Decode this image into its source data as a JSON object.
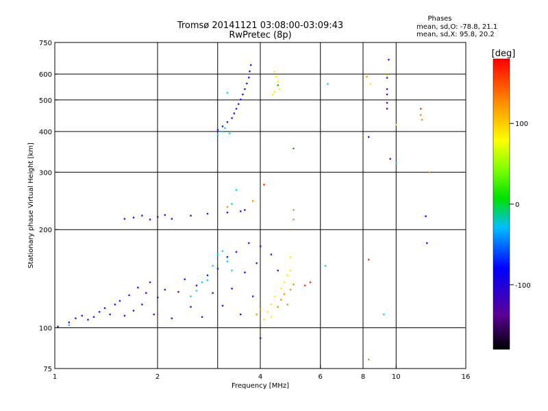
{
  "chart_data": {
    "type": "scatter",
    "title": "Tromsø 20141121 03:08:00-03:09:43",
    "subtitle": "RwPretec (8p)",
    "phase_box": {
      "header": "Phases",
      "line1": "mean, sd,O: -78.8, 21.1",
      "line2": "mean, sd,X:  95.8, 20.2"
    },
    "xlabel": "Frequency [MHz]",
    "ylabel": "Stationary phase Virtual Height [km]",
    "xscale": "log",
    "yscale": "log",
    "xlim": [
      1,
      16
    ],
    "ylim": [
      75,
      750
    ],
    "xticks": [
      1,
      2,
      4,
      6,
      8,
      10,
      16
    ],
    "yticks": [
      75,
      100,
      200,
      300,
      400,
      500,
      600,
      750
    ],
    "x_gridlines": [
      2,
      3,
      4,
      6,
      8,
      10
    ],
    "y_gridlines": [
      100,
      200,
      300,
      400,
      500,
      600
    ],
    "grid": true,
    "colorbar": {
      "label": "[deg]",
      "range": [
        -180,
        180
      ],
      "ticks": [
        100,
        0,
        -100
      ]
    },
    "series": [
      {
        "color": "#1a1aff",
        "points": [
          [
            1.02,
            101
          ],
          [
            1.1,
            104
          ],
          [
            1.15,
            107
          ],
          [
            1.2,
            109
          ],
          [
            1.25,
            106
          ],
          [
            1.3,
            108
          ],
          [
            1.35,
            112
          ],
          [
            1.4,
            115
          ],
          [
            1.45,
            110
          ],
          [
            1.5,
            118
          ],
          [
            1.55,
            121
          ],
          [
            1.6,
            109
          ],
          [
            1.65,
            126
          ],
          [
            1.7,
            113
          ],
          [
            1.75,
            133
          ],
          [
            1.8,
            118
          ],
          [
            1.85,
            128
          ],
          [
            1.9,
            138
          ],
          [
            1.95,
            110
          ],
          [
            2.0,
            124
          ],
          [
            2.1,
            131
          ],
          [
            2.2,
            107
          ],
          [
            2.3,
            129
          ],
          [
            2.4,
            141
          ],
          [
            2.5,
            116
          ],
          [
            2.6,
            135
          ],
          [
            2.7,
            108
          ],
          [
            2.8,
            145
          ],
          [
            2.9,
            128
          ],
          [
            3.0,
            152
          ],
          [
            3.1,
            117
          ],
          [
            3.2,
            165
          ],
          [
            3.3,
            132
          ],
          [
            3.4,
            171
          ],
          [
            3.5,
            110
          ],
          [
            3.6,
            148
          ],
          [
            3.7,
            182
          ],
          [
            3.8,
            125
          ],
          [
            3.9,
            158
          ],
          [
            1.6,
            216
          ],
          [
            1.7,
            218
          ],
          [
            1.8,
            221
          ],
          [
            1.9,
            215
          ],
          [
            2.0,
            219
          ],
          [
            2.1,
            222
          ],
          [
            2.2,
            216
          ],
          [
            2.5,
            221
          ],
          [
            2.8,
            224
          ],
          [
            3.2,
            226
          ],
          [
            3.5,
            228
          ],
          [
            3.6,
            230
          ],
          [
            3.0,
            405
          ],
          [
            3.1,
            415
          ],
          [
            3.2,
            428
          ],
          [
            3.3,
            440
          ],
          [
            3.35,
            455
          ],
          [
            3.4,
            470
          ],
          [
            3.45,
            486
          ],
          [
            3.5,
            502
          ],
          [
            3.55,
            520
          ],
          [
            3.6,
            540
          ],
          [
            3.65,
            562
          ],
          [
            3.7,
            586
          ],
          [
            3.72,
            612
          ],
          [
            3.75,
            640
          ],
          [
            9.5,
            665
          ],
          [
            9.4,
            585
          ],
          [
            8.3,
            385
          ],
          [
            9.6,
            330
          ],
          [
            12.2,
            220
          ],
          [
            12.3,
            182
          ],
          [
            4.0,
            178
          ],
          [
            4.3,
            168
          ],
          [
            4.5,
            150
          ],
          [
            4.0,
            93
          ]
        ]
      },
      {
        "color": "#00d4ff",
        "points": [
          [
            3.0,
            392
          ],
          [
            3.1,
            400
          ],
          [
            3.15,
            410
          ],
          [
            3.25,
            395
          ],
          [
            2.8,
            140
          ],
          [
            2.9,
            155
          ],
          [
            3.0,
            168
          ],
          [
            3.1,
            172
          ],
          [
            3.2,
            160
          ],
          [
            3.3,
            150
          ],
          [
            2.6,
            130
          ],
          [
            2.7,
            138
          ],
          [
            2.5,
            125
          ],
          [
            3.2,
            526
          ],
          [
            6.3,
            560
          ],
          [
            10.0,
            320
          ],
          [
            9.2,
            110
          ],
          [
            6.2,
            155
          ],
          [
            3.4,
            265
          ],
          [
            3.3,
            240
          ],
          [
            1.1,
            102
          ]
        ]
      },
      {
        "color": "#ffee00",
        "points": [
          [
            4.4,
            610
          ],
          [
            4.45,
            590
          ],
          [
            4.5,
            570
          ],
          [
            4.55,
            540
          ],
          [
            4.4,
            530
          ],
          [
            4.35,
            520
          ],
          [
            4.2,
            112
          ],
          [
            4.3,
            118
          ],
          [
            4.4,
            125
          ],
          [
            4.6,
            132
          ],
          [
            4.7,
            138
          ],
          [
            4.8,
            145
          ],
          [
            4.9,
            150
          ],
          [
            4.3,
            108
          ],
          [
            4.1,
            106
          ],
          [
            8.4,
            560
          ],
          [
            9.4,
            595
          ],
          [
            10.0,
            420
          ],
          [
            4.9,
            165
          ]
        ]
      },
      {
        "color": "#ff8c00",
        "points": [
          [
            4.6,
            122
          ],
          [
            4.7,
            127
          ],
          [
            4.8,
            118
          ],
          [
            4.9,
            131
          ],
          [
            5.0,
            136
          ],
          [
            4.5,
            116
          ],
          [
            3.9,
            110
          ],
          [
            4.0,
            114
          ],
          [
            8.2,
            590
          ],
          [
            8.3,
            80
          ],
          [
            11.8,
            450
          ],
          [
            11.9,
            435
          ],
          [
            12.5,
            300
          ],
          [
            5.0,
            230
          ],
          [
            5.0,
            215
          ],
          [
            3.8,
            245
          ],
          [
            3.2,
            235
          ]
        ]
      },
      {
        "color": "#ff3300",
        "points": [
          [
            5.4,
            135
          ],
          [
            5.6,
            138
          ],
          [
            4.1,
            275
          ],
          [
            11.8,
            470
          ],
          [
            8.3,
            162
          ]
        ]
      },
      {
        "color": "#6a00a8",
        "points": [
          [
            9.4,
            520
          ],
          [
            9.4,
            490
          ],
          [
            9.4,
            470
          ],
          [
            9.4,
            540
          ]
        ]
      },
      {
        "color": "#00c000",
        "points": [
          [
            5.0,
            355
          ],
          [
            4.5,
            555
          ]
        ]
      }
    ]
  }
}
